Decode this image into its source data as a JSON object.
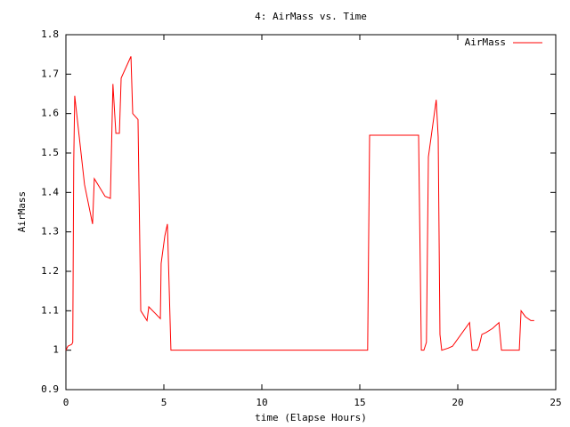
{
  "chart_data": {
    "type": "line",
    "title": "4: AirMass vs. Time",
    "x_label": "time (Elapse Hours)",
    "y_label": "AirMass",
    "legend": "top-right",
    "xlim": [
      0,
      25
    ],
    "xticks": [
      0,
      5,
      10,
      15,
      20,
      25
    ],
    "ylim": [
      0.9,
      1.8
    ],
    "yticks": [
      0.9,
      1,
      1.1,
      1.2,
      1.3,
      1.4,
      1.5,
      1.6,
      1.7,
      1.8
    ],
    "series": [
      {
        "name": "AirMass",
        "color": "#ff0000",
        "x": [
          0,
          0.1,
          0.3,
          0.35,
          0.4,
          0.45,
          0.95,
          1.36,
          1.45,
          2.0,
          2.27,
          2.4,
          2.55,
          2.73,
          2.82,
          3.32,
          3.41,
          3.68,
          3.82,
          4.14,
          4.23,
          4.82,
          4.86,
          5.05,
          5.18,
          5.36,
          15.4,
          15.5,
          18.0,
          18.14,
          18.27,
          18.4,
          18.5,
          18.9,
          19.0,
          19.09,
          19.18,
          19.5,
          19.73,
          20.6,
          20.73,
          21.0,
          21.09,
          21.23,
          21.45,
          21.77,
          22.1,
          22.23,
          23.14,
          23.23,
          23.45,
          23.73,
          23.9
        ],
        "values": [
          1.0,
          1.01,
          1.015,
          1.02,
          1.48,
          1.645,
          1.42,
          1.32,
          1.435,
          1.39,
          1.385,
          1.675,
          1.55,
          1.55,
          1.69,
          1.745,
          1.6,
          1.585,
          1.1,
          1.075,
          1.11,
          1.08,
          1.22,
          1.29,
          1.32,
          1.0,
          1.0,
          1.545,
          1.545,
          1.0,
          1.0,
          1.02,
          1.49,
          1.635,
          1.54,
          1.04,
          1.0,
          1.005,
          1.01,
          1.07,
          1.0,
          1.0,
          1.01,
          1.04,
          1.045,
          1.055,
          1.07,
          1.0,
          1.0,
          1.1,
          1.085,
          1.075,
          1.075
        ]
      }
    ]
  }
}
